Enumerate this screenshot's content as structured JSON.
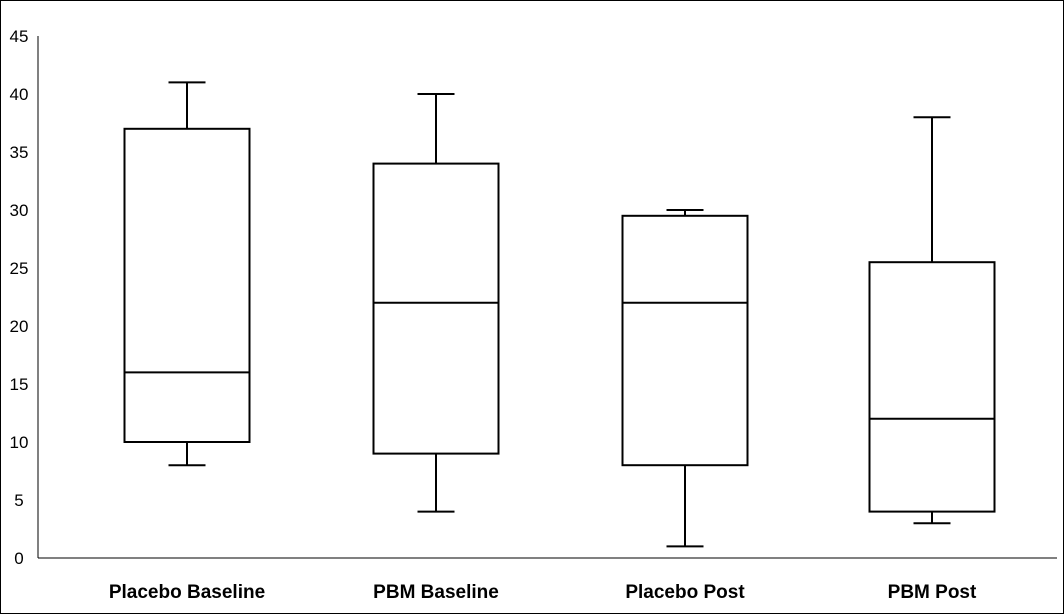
{
  "chart_data": {
    "type": "boxplot",
    "title": "",
    "xlabel": "",
    "ylabel": "",
    "ylim": [
      0,
      45
    ],
    "y_ticks": [
      0,
      5,
      10,
      15,
      20,
      25,
      30,
      35,
      40,
      45
    ],
    "grid": false,
    "legend": "none",
    "categories": [
      "Placebo Baseline",
      "PBM Baseline",
      "Placebo Post",
      "PBM Post"
    ],
    "boxes": [
      {
        "category": "Placebo Baseline",
        "min": 8,
        "q1": 10,
        "median": 16,
        "q3": 37,
        "max": 41
      },
      {
        "category": "PBM Baseline",
        "min": 4,
        "q1": 9,
        "median": 22,
        "q3": 34,
        "max": 40
      },
      {
        "category": "Placebo Post",
        "min": 1,
        "q1": 8,
        "median": 22,
        "q3": 29.5,
        "max": 30
      },
      {
        "category": "PBM Post",
        "min": 3,
        "q1": 4,
        "median": 12,
        "q3": 25.5,
        "max": 38
      }
    ],
    "colors": {
      "box_fill": "#ffffff",
      "stroke": "#000000"
    }
  }
}
